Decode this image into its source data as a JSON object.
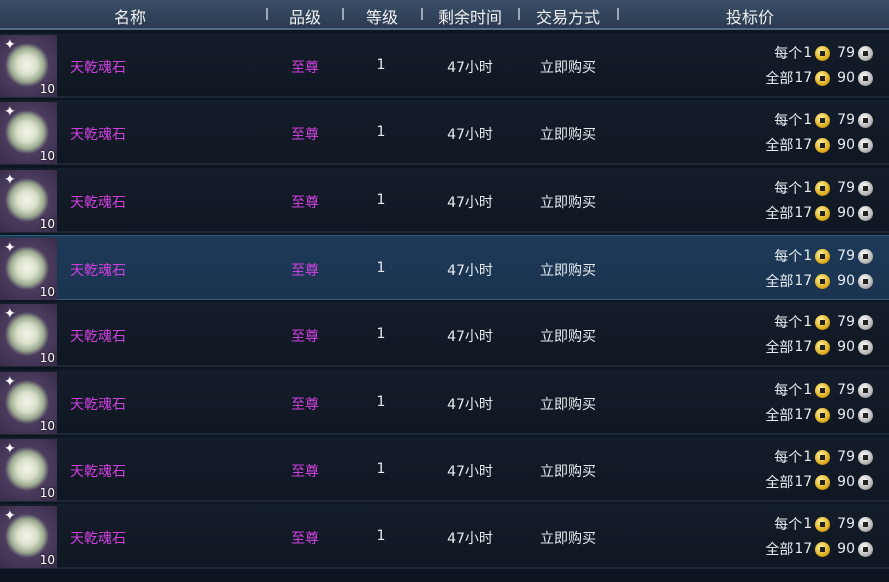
{
  "header": {
    "name": "名称",
    "grade": "品级",
    "level": "等级",
    "time_left": "剩余时间",
    "trade_type": "交易方式",
    "bid_price": "投标价"
  },
  "rows": [
    {
      "name": "天乾魂石",
      "count": "10",
      "grade": "至尊",
      "level": "1",
      "time_left": "47小时",
      "trade_type": "立即购买",
      "each_label": "每个",
      "each_gold": "1",
      "each_silver": "79",
      "total_label": "全部",
      "total_gold": "17",
      "total_silver": "90"
    },
    {
      "name": "天乾魂石",
      "count": "10",
      "grade": "至尊",
      "level": "1",
      "time_left": "47小时",
      "trade_type": "立即购买",
      "each_label": "每个",
      "each_gold": "1",
      "each_silver": "79",
      "total_label": "全部",
      "total_gold": "17",
      "total_silver": "90"
    },
    {
      "name": "天乾魂石",
      "count": "10",
      "grade": "至尊",
      "level": "1",
      "time_left": "47小时",
      "trade_type": "立即购买",
      "each_label": "每个",
      "each_gold": "1",
      "each_silver": "79",
      "total_label": "全部",
      "total_gold": "17",
      "total_silver": "90"
    },
    {
      "name": "天乾魂石",
      "count": "10",
      "grade": "至尊",
      "level": "1",
      "time_left": "47小时",
      "trade_type": "立即购买",
      "each_label": "每个",
      "each_gold": "1",
      "each_silver": "79",
      "total_label": "全部",
      "total_gold": "17",
      "total_silver": "90",
      "selected": true
    },
    {
      "name": "天乾魂石",
      "count": "10",
      "grade": "至尊",
      "level": "1",
      "time_left": "47小时",
      "trade_type": "立即购买",
      "each_label": "每个",
      "each_gold": "1",
      "each_silver": "79",
      "total_label": "全部",
      "total_gold": "17",
      "total_silver": "90"
    },
    {
      "name": "天乾魂石",
      "count": "10",
      "grade": "至尊",
      "level": "1",
      "time_left": "47小时",
      "trade_type": "立即购买",
      "each_label": "每个",
      "each_gold": "1",
      "each_silver": "79",
      "total_label": "全部",
      "total_gold": "17",
      "total_silver": "90"
    },
    {
      "name": "天乾魂石",
      "count": "10",
      "grade": "至尊",
      "level": "1",
      "time_left": "47小时",
      "trade_type": "立即购买",
      "each_label": "每个",
      "each_gold": "1",
      "each_silver": "79",
      "total_label": "全部",
      "total_gold": "17",
      "total_silver": "90"
    },
    {
      "name": "天乾魂石",
      "count": "10",
      "grade": "至尊",
      "level": "1",
      "time_left": "47小时",
      "trade_type": "立即购买",
      "each_label": "每个",
      "each_gold": "1",
      "each_silver": "79",
      "total_label": "全部",
      "total_gold": "17",
      "total_silver": "90"
    }
  ],
  "colors": {
    "grade_purple": "#d040e0",
    "selected_row": "#1d3a58"
  }
}
